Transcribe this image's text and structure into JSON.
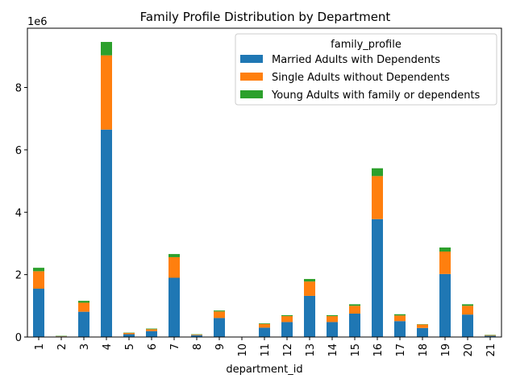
{
  "chart_data": {
    "type": "bar",
    "stacked": true,
    "title": "Family Profile Distribution by Department",
    "xlabel": "department_id",
    "ylabel": "",
    "y_multiplier_label": "1e6",
    "ylim": [
      0,
      9.9
    ],
    "yticks": [
      0,
      2,
      4,
      6,
      8
    ],
    "ytick_labels": [
      "0",
      "2",
      "4",
      "6",
      "8"
    ],
    "legend_title": "family_profile",
    "legend_position": "top-right",
    "grid": false,
    "categories": [
      "1",
      "2",
      "3",
      "4",
      "5",
      "6",
      "7",
      "8",
      "9",
      "10",
      "11",
      "12",
      "13",
      "14",
      "15",
      "16",
      "17",
      "18",
      "19",
      "20",
      "21"
    ],
    "series": [
      {
        "name": "Married Adults with Dependents",
        "color": "#1f77b4",
        "values": [
          1.55,
          0.02,
          0.81,
          6.65,
          0.09,
          0.19,
          1.9,
          0.06,
          0.61,
          0.01,
          0.3,
          0.48,
          1.32,
          0.48,
          0.75,
          3.78,
          0.51,
          0.29,
          2.02,
          0.72,
          0.04
        ]
      },
      {
        "name": "Single Adults without Dependents",
        "color": "#ff7f0e",
        "values": [
          0.56,
          0.01,
          0.29,
          2.38,
          0.04,
          0.06,
          0.66,
          0.02,
          0.21,
          0.0,
          0.12,
          0.19,
          0.46,
          0.19,
          0.25,
          1.38,
          0.18,
          0.11,
          0.72,
          0.28,
          0.02
        ]
      },
      {
        "name": "Young Adults with family or dependents",
        "color": "#2ca02c",
        "values": [
          0.11,
          0.01,
          0.06,
          0.43,
          0.01,
          0.02,
          0.1,
          0.01,
          0.03,
          0.0,
          0.02,
          0.03,
          0.08,
          0.03,
          0.05,
          0.25,
          0.04,
          0.01,
          0.13,
          0.05,
          0.01
        ]
      }
    ]
  }
}
